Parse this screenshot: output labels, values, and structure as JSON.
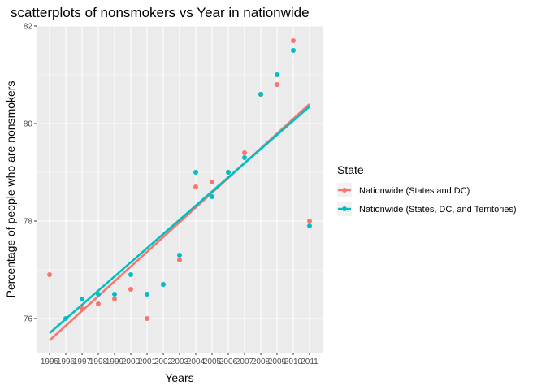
{
  "chart_data": {
    "type": "scatter",
    "title": "scatterplots of nonsmokers vs Year in nationwide",
    "xlabel": "Years",
    "ylabel": "Percentage of people who are nonsmokers",
    "x_ticks": [
      1995,
      1996,
      1997,
      1998,
      1999,
      2000,
      2001,
      2002,
      2003,
      2004,
      2005,
      2006,
      2007,
      2008,
      2009,
      2010,
      2011
    ],
    "y_ticks": [
      76,
      78,
      80,
      82
    ],
    "xlim": [
      1994.2,
      2011.8
    ],
    "ylim": [
      75.3,
      82
    ],
    "grid": true,
    "legend": {
      "title": "State",
      "position": "right"
    },
    "series": [
      {
        "name": "Nationwide (States and DC)",
        "color": "#F8766D",
        "x": [
          1995,
          1997,
          1998,
          1999,
          2000,
          2001,
          2002,
          2003,
          2004,
          2005,
          2006,
          2007,
          2008,
          2009,
          2010,
          2011
        ],
        "y": [
          76.9,
          76.2,
          76.3,
          76.4,
          76.6,
          76.0,
          76.7,
          77.2,
          78.7,
          78.8,
          79.0,
          79.4,
          80.6,
          80.8,
          81.7,
          78.0
        ],
        "fit": [
          75.55,
          80.4
        ]
      },
      {
        "name": "Nationwide (States, DC, and Territories)",
        "color": "#00BFC4",
        "x": [
          1996,
          1997,
          1998,
          1999,
          2000,
          2001,
          2002,
          2003,
          2004,
          2005,
          2006,
          2007,
          2008,
          2009,
          2010,
          2011
        ],
        "y": [
          76.0,
          76.4,
          76.5,
          76.5,
          76.9,
          76.5,
          76.7,
          77.3,
          79.0,
          78.5,
          79.0,
          79.3,
          80.6,
          81.0,
          81.5,
          77.9
        ],
        "fit": [
          75.7,
          80.35
        ]
      }
    ]
  }
}
